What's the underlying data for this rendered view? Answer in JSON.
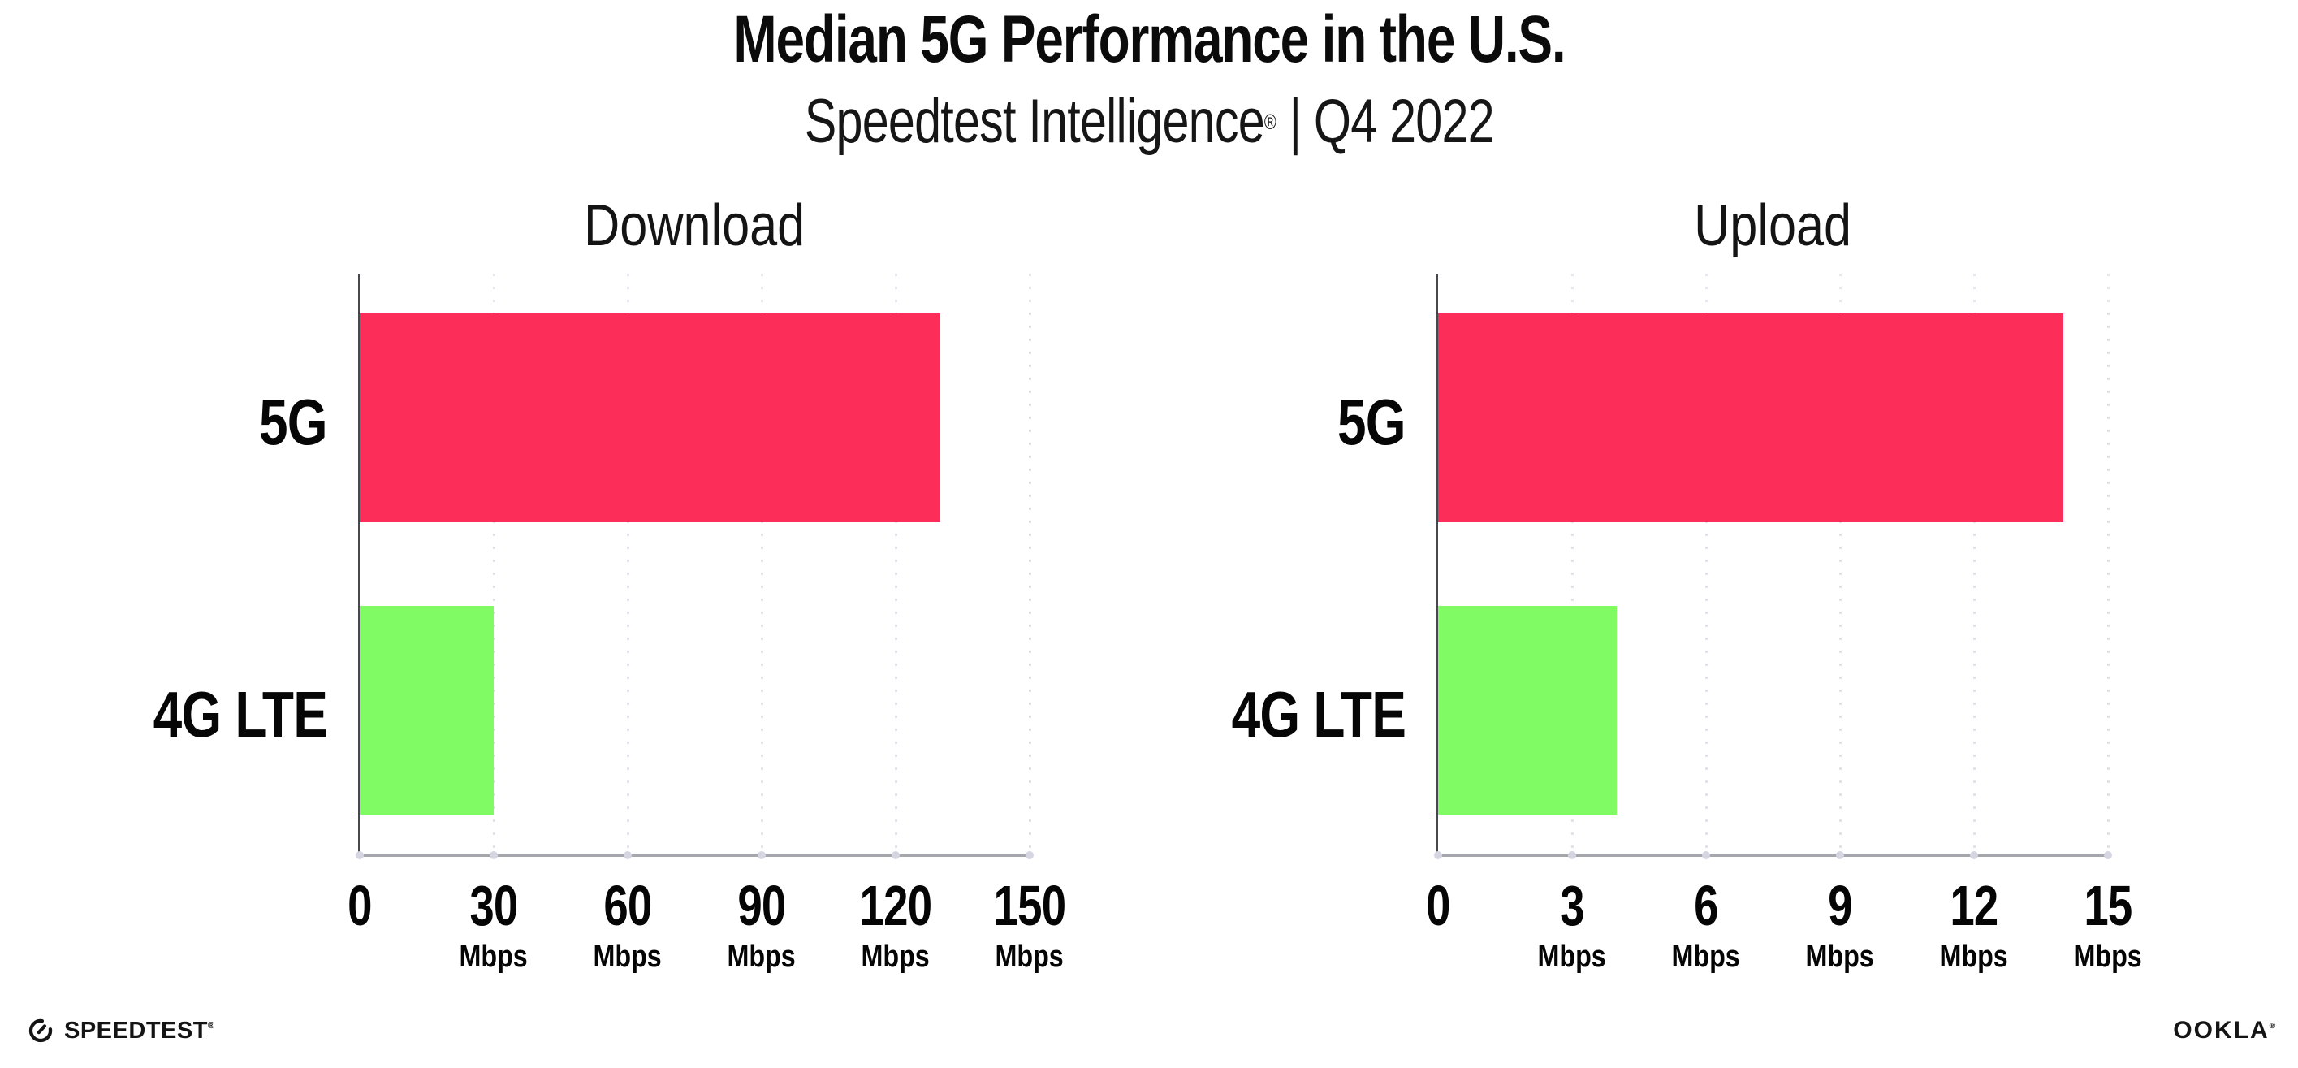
{
  "header": {
    "title": "Median 5G Performance in the U.S.",
    "subtitle": {
      "brand": "Speedtest Intelligence",
      "mark": "®",
      "rest": " | Q4 2022"
    }
  },
  "chart_data": [
    {
      "type": "bar",
      "orientation": "horizontal",
      "title": "Download",
      "categories": [
        "5G",
        "4G LTE"
      ],
      "values": [
        130,
        30
      ],
      "unit": "Mbps",
      "xlim": [
        0,
        150
      ],
      "xticks": [
        0,
        30,
        60,
        90,
        120,
        150
      ],
      "bar_colors": [
        "#FC2D58",
        "#80FB63"
      ],
      "grid": "vertical-dotted",
      "legend": "none"
    },
    {
      "type": "bar",
      "orientation": "horizontal",
      "title": "Upload",
      "categories": [
        "5G",
        "4G LTE"
      ],
      "values": [
        14,
        4
      ],
      "unit": "Mbps",
      "xlim": [
        0,
        15
      ],
      "xticks": [
        0,
        3,
        6,
        9,
        12,
        15
      ],
      "bar_colors": [
        "#FC2D58",
        "#80FB63"
      ],
      "grid": "vertical-dotted",
      "legend": "none"
    }
  ],
  "footer": {
    "speedtest_label": "SPEEDTEST",
    "speedtest_mark": "®",
    "ookla_label": "OOKLA",
    "ookla_mark": "®"
  },
  "colors": {
    "bar_5g": "#FC2D58",
    "bar_4g": "#80FB63",
    "axis": "#A6A6AD",
    "spine": "#47474F",
    "gridline": "#E2E2EF",
    "tick_dot": "#D6D6E2",
    "text": "#111111"
  }
}
